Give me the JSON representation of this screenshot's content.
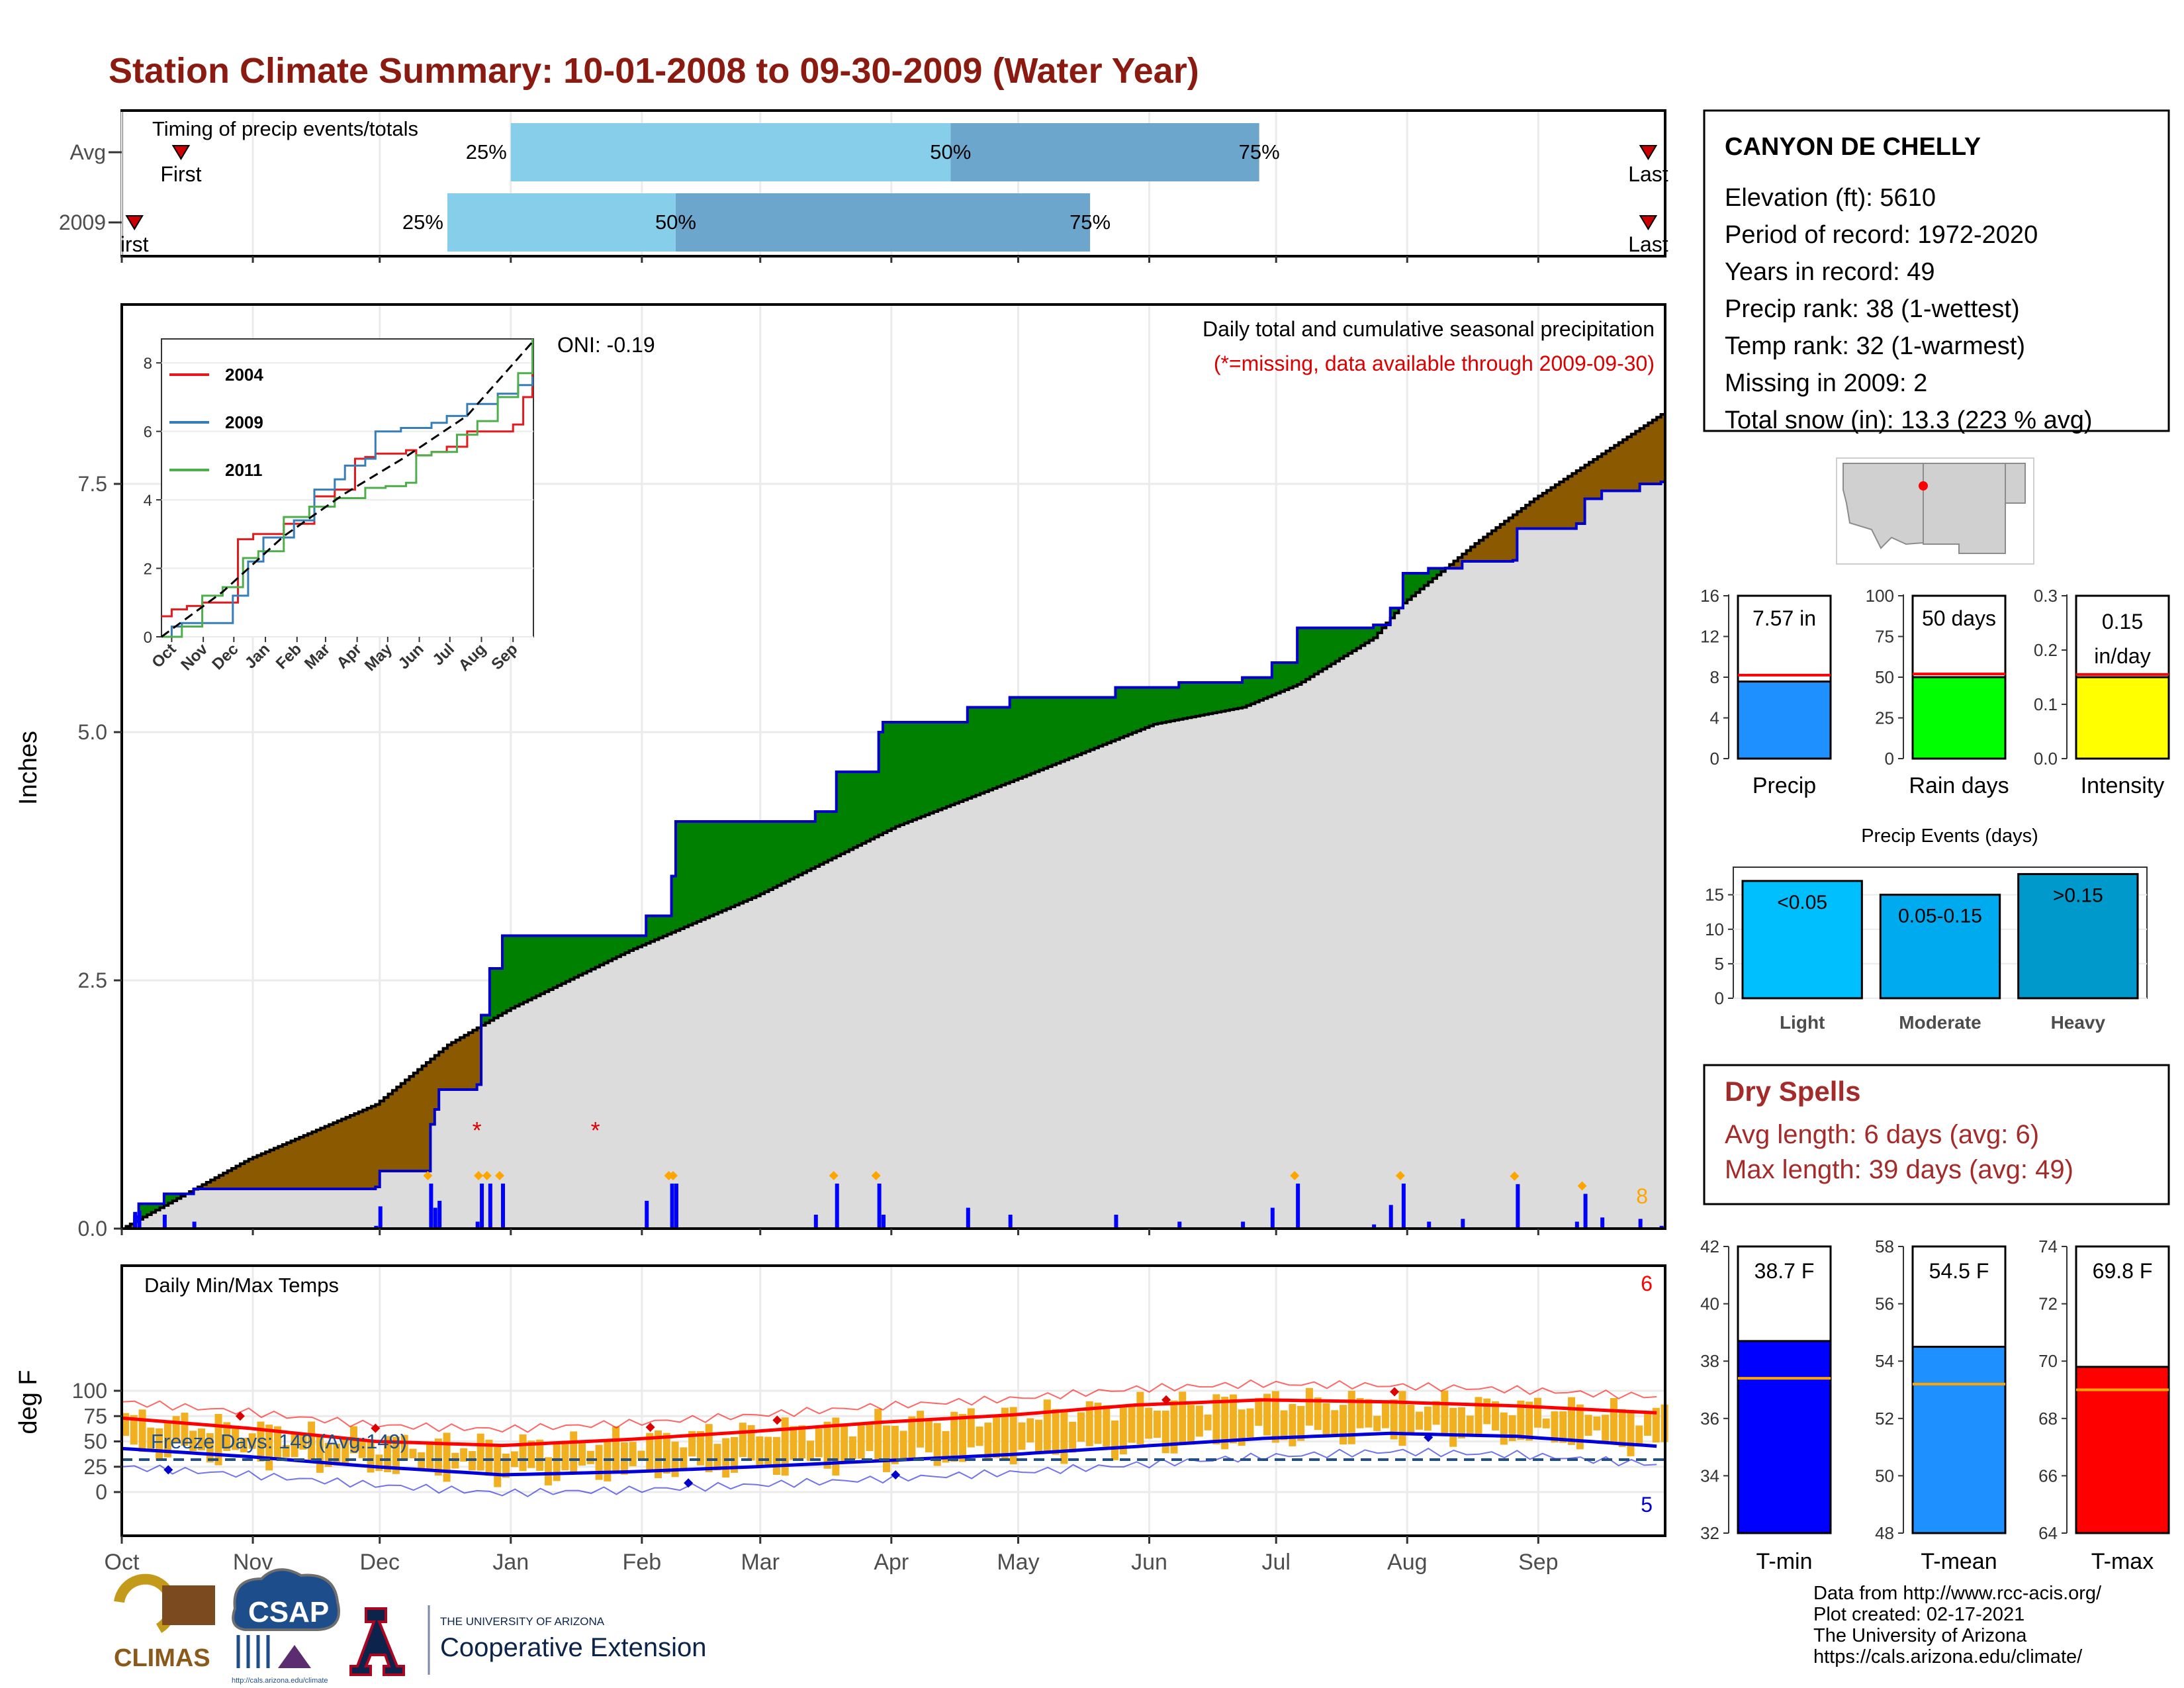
{
  "page": {
    "title": "Station Climate Summary: 10-01-2008 to 09-30-2009 (Water Year)",
    "title_color": "#8B1A10"
  },
  "timing_panel": {
    "title": "Timing of precip events/totals",
    "row_labels": [
      "Avg",
      "2009"
    ],
    "first_label": "First",
    "last_label": "Last",
    "first_label_2009": "irst",
    "avg": {
      "pct25_label": "25%",
      "pct50_label": "50%",
      "pct75_label": "75%",
      "first_day": 14,
      "p25": 92,
      "p50": 196,
      "p75": 269,
      "last_day": 361
    },
    "y2009": {
      "pct25_label": "25%",
      "pct50_label": "50%",
      "pct75_label": "75%",
      "first_day": 3,
      "p25": 77,
      "p50": 131,
      "p75": 229,
      "last_day": 361
    },
    "colors": {
      "light": "#87CEEB",
      "dark": "#6CA6CD",
      "marker": "#CC0000"
    }
  },
  "precip_panel": {
    "y_axis_label": "Inches",
    "y_ticks": [
      "0.0",
      "2.5",
      "5.0",
      "7.5"
    ],
    "caption": "Daily total and cumulative seasonal precipitation",
    "missing_note": "(*=missing, data available through 2009-09-30)",
    "oni": "ONI: -0.19",
    "event_count_label": "8",
    "colors": {
      "above": "#008000",
      "below": "#8B5A00",
      "normal_fill": "#DCDCDC",
      "observed_line": "#0000CC",
      "bars": "#0000FF",
      "missing": "#DD0000",
      "diamond": "#FFA500"
    }
  },
  "inset_chart": {
    "legend": [
      "2004",
      "2009",
      "2011"
    ],
    "legend_colors": [
      "#E41A1C",
      "#377EB8",
      "#4DAF4A"
    ],
    "y_ticks": [
      "0",
      "2",
      "4",
      "6",
      "8"
    ],
    "x_ticks": [
      "Oct",
      "Nov",
      "Dec",
      "Jan",
      "Feb",
      "Mar",
      "Apr",
      "May",
      "Jun",
      "Jul",
      "Aug",
      "Sep"
    ]
  },
  "temp_panel": {
    "title": "Daily Min/Max Temps",
    "y_axis_label": "deg F",
    "y_ticks": [
      "0",
      "25",
      "50",
      "75",
      "100"
    ],
    "freeze_text": "Freeze Days: 149 (Avg:149)",
    "max_count_label": "6",
    "min_count_label": "5",
    "colors": {
      "bar": "#F0B020",
      "avg_max": "#FF0000",
      "avg_min": "#0000DD",
      "freeze_line": "#1F4E8C"
    }
  },
  "x_axis": {
    "months": [
      "Oct",
      "Nov",
      "Dec",
      "Jan",
      "Feb",
      "Mar",
      "Apr",
      "May",
      "Jun",
      "Jul",
      "Aug",
      "Sep"
    ]
  },
  "station": {
    "name": "CANYON DE CHELLY",
    "lines": [
      "Elevation (ft): 5610",
      "Period of record: 1972-2020",
      "Years in record: 49",
      "Precip rank: 38 (1-wettest)",
      "Temp rank: 32 (1-warmest)",
      "Missing in 2009: 2",
      "Total snow (in): 13.3 (223 % avg)"
    ]
  },
  "mini_bars": [
    {
      "label": "Precip",
      "value_text": "7.57 in",
      "value": 7.57,
      "avg": 8.2,
      "ymax": 16,
      "ticks": [
        "0",
        "4",
        "8",
        "12",
        "16"
      ],
      "color": "#1E90FF",
      "avg_color": "#FF0000"
    },
    {
      "label": "Rain days",
      "value_text": "50 days",
      "value": 50,
      "avg": 52,
      "ymax": 100,
      "ticks": [
        "0",
        "25",
        "50",
        "75",
        "100"
      ],
      "color": "#00FF00",
      "avg_color": "#FF0000"
    },
    {
      "label": "Intensity",
      "value_text": "0.15",
      "value_text2": "in/day",
      "value": 0.15,
      "avg": 0.155,
      "ymax": 0.3,
      "ticks": [
        "0.0",
        "0.1",
        "0.2",
        "0.3"
      ],
      "color": "#FFFF00",
      "avg_color": "#FF0000"
    }
  ],
  "precip_events": {
    "title": "Precip Events (days)",
    "categories": [
      "Light",
      "Moderate",
      "Heavy"
    ],
    "bar_labels": [
      "<0.05",
      "0.05-0.15",
      ">0.15"
    ],
    "values": [
      17,
      15,
      18
    ],
    "ticks": [
      "0",
      "5",
      "10",
      "15"
    ],
    "colors": [
      "#00BFFF",
      "#00AAEE",
      "#0099CC"
    ]
  },
  "dry_spells": {
    "title": "Dry Spells",
    "avg_line": "Avg length: 6 days (avg: 6)",
    "max_line": "Max length: 39 days (avg: 49)",
    "color": "#A52A2A"
  },
  "temp_bars": [
    {
      "label": "T-min",
      "value_text": "38.7 F",
      "value": 38.7,
      "avg": 37.4,
      "ymin": 32,
      "ymax": 42,
      "ticks": [
        "32",
        "34",
        "36",
        "38",
        "40",
        "42"
      ],
      "color": "#0000FF"
    },
    {
      "label": "T-mean",
      "value_text": "54.5 F",
      "value": 54.5,
      "avg": 53.2,
      "ymin": 48,
      "ymax": 58,
      "ticks": [
        "48",
        "50",
        "52",
        "54",
        "56",
        "58"
      ],
      "color": "#1E90FF"
    },
    {
      "label": "T-max",
      "value_text": "69.8 F",
      "value": 69.8,
      "avg": 69.0,
      "ymin": 64,
      "ymax": 74,
      "ticks": [
        "64",
        "66",
        "68",
        "70",
        "72",
        "74"
      ],
      "color": "#FF0000"
    }
  ],
  "footer": {
    "lines": [
      "Data from http://www.rcc-acis.org/",
      "Plot created: 02-17-2021",
      "The University of Arizona",
      "https://cals.arizona.edu/climate/"
    ],
    "logo_climas": "CLIMAS",
    "logo_csap": "CSAP",
    "logo_csap_url": "http://cals.arizona.edu/climate",
    "ua_small": "THE UNIVERSITY OF ARIZONA",
    "ua_big": "Cooperative Extension",
    "ua_letter": "A"
  },
  "chart_data": [
    {
      "type": "line",
      "title": "Daily total and cumulative seasonal precipitation",
      "ylabel": "Inches",
      "ylim": [
        0,
        8.5
      ],
      "x_unit": "day of water year (0 = Oct 1)",
      "series": [
        {
          "name": "2009",
          "x": [
            0,
            3,
            4,
            10,
            17,
            50,
            60,
            61,
            73,
            74,
            75,
            84,
            85,
            87,
            90,
            124,
            130,
            131,
            164,
            169,
            179,
            180,
            200,
            210,
            235,
            250,
            265,
            272,
            278,
            296,
            300,
            303,
            309,
            317,
            329,
            330,
            344,
            346,
            350,
            359,
            364
          ],
          "y": [
            0,
            0.12,
            0.25,
            0.35,
            0.4,
            0.4,
            0.42,
            0.58,
            1.05,
            1.2,
            1.4,
            1.45,
            2.15,
            2.62,
            2.95,
            3.15,
            3.55,
            4.1,
            4.2,
            4.6,
            5.0,
            5.1,
            5.25,
            5.35,
            5.45,
            5.5,
            5.55,
            5.7,
            6.05,
            6.08,
            6.25,
            6.6,
            6.65,
            6.72,
            6.73,
            7.05,
            7.1,
            7.35,
            7.43,
            7.5,
            7.52
          ]
        },
        {
          "name": "Avg",
          "x": [
            0,
            30,
            60,
            77,
            92,
            120,
            150,
            183,
            213,
            244,
            265,
            278,
            296,
            303,
            320,
            334,
            364
          ],
          "y": [
            0,
            0.7,
            1.25,
            1.85,
            2.22,
            2.8,
            3.35,
            4.05,
            4.55,
            5.08,
            5.25,
            5.48,
            5.95,
            6.3,
            6.9,
            7.35,
            8.2
          ]
        }
      ]
    },
    {
      "type": "line",
      "title": "Daily Min/Max Temps",
      "ylabel": "deg F",
      "ylim": [
        -15,
        105
      ],
      "x_unit": "day of water year (0 = Oct 1)",
      "series": [
        {
          "name": "Avg max",
          "x": [
            0,
            30,
            60,
            90,
            120,
            150,
            180,
            210,
            240,
            270,
            300,
            330,
            364
          ],
          "y": [
            73,
            63,
            50,
            46,
            52,
            60,
            69,
            76,
            86,
            91,
            89,
            85,
            78
          ]
        },
        {
          "name": "Avg min",
          "x": [
            0,
            30,
            60,
            90,
            120,
            150,
            180,
            210,
            240,
            270,
            300,
            330,
            364
          ],
          "y": [
            43,
            35,
            25,
            17,
            20,
            25,
            31,
            37,
            45,
            53,
            58,
            55,
            45
          ]
        },
        {
          "name": "Freeze line",
          "x": [
            0,
            364
          ],
          "y": [
            32,
            32
          ]
        }
      ]
    },
    {
      "type": "bar",
      "categories": [
        "Precip"
      ],
      "values": [
        7.57
      ],
      "ylim": [
        0,
        16
      ]
    },
    {
      "type": "bar",
      "categories": [
        "Rain days"
      ],
      "values": [
        50
      ],
      "ylim": [
        0,
        100
      ]
    },
    {
      "type": "bar",
      "categories": [
        "Intensity"
      ],
      "values": [
        0.15
      ],
      "ylim": [
        0,
        0.3
      ]
    },
    {
      "type": "bar",
      "title": "Precip Events (days)",
      "categories": [
        "Light",
        "Moderate",
        "Heavy"
      ],
      "values": [
        17,
        15,
        18
      ],
      "ylim": [
        0,
        19
      ]
    },
    {
      "type": "bar",
      "categories": [
        "T-min"
      ],
      "values": [
        38.7
      ],
      "ylim": [
        32,
        42
      ]
    },
    {
      "type": "bar",
      "categories": [
        "T-mean"
      ],
      "values": [
        54.5
      ],
      "ylim": [
        48,
        58
      ]
    },
    {
      "type": "bar",
      "categories": [
        "T-max"
      ],
      "values": [
        69.8
      ],
      "ylim": [
        64,
        74
      ]
    }
  ]
}
